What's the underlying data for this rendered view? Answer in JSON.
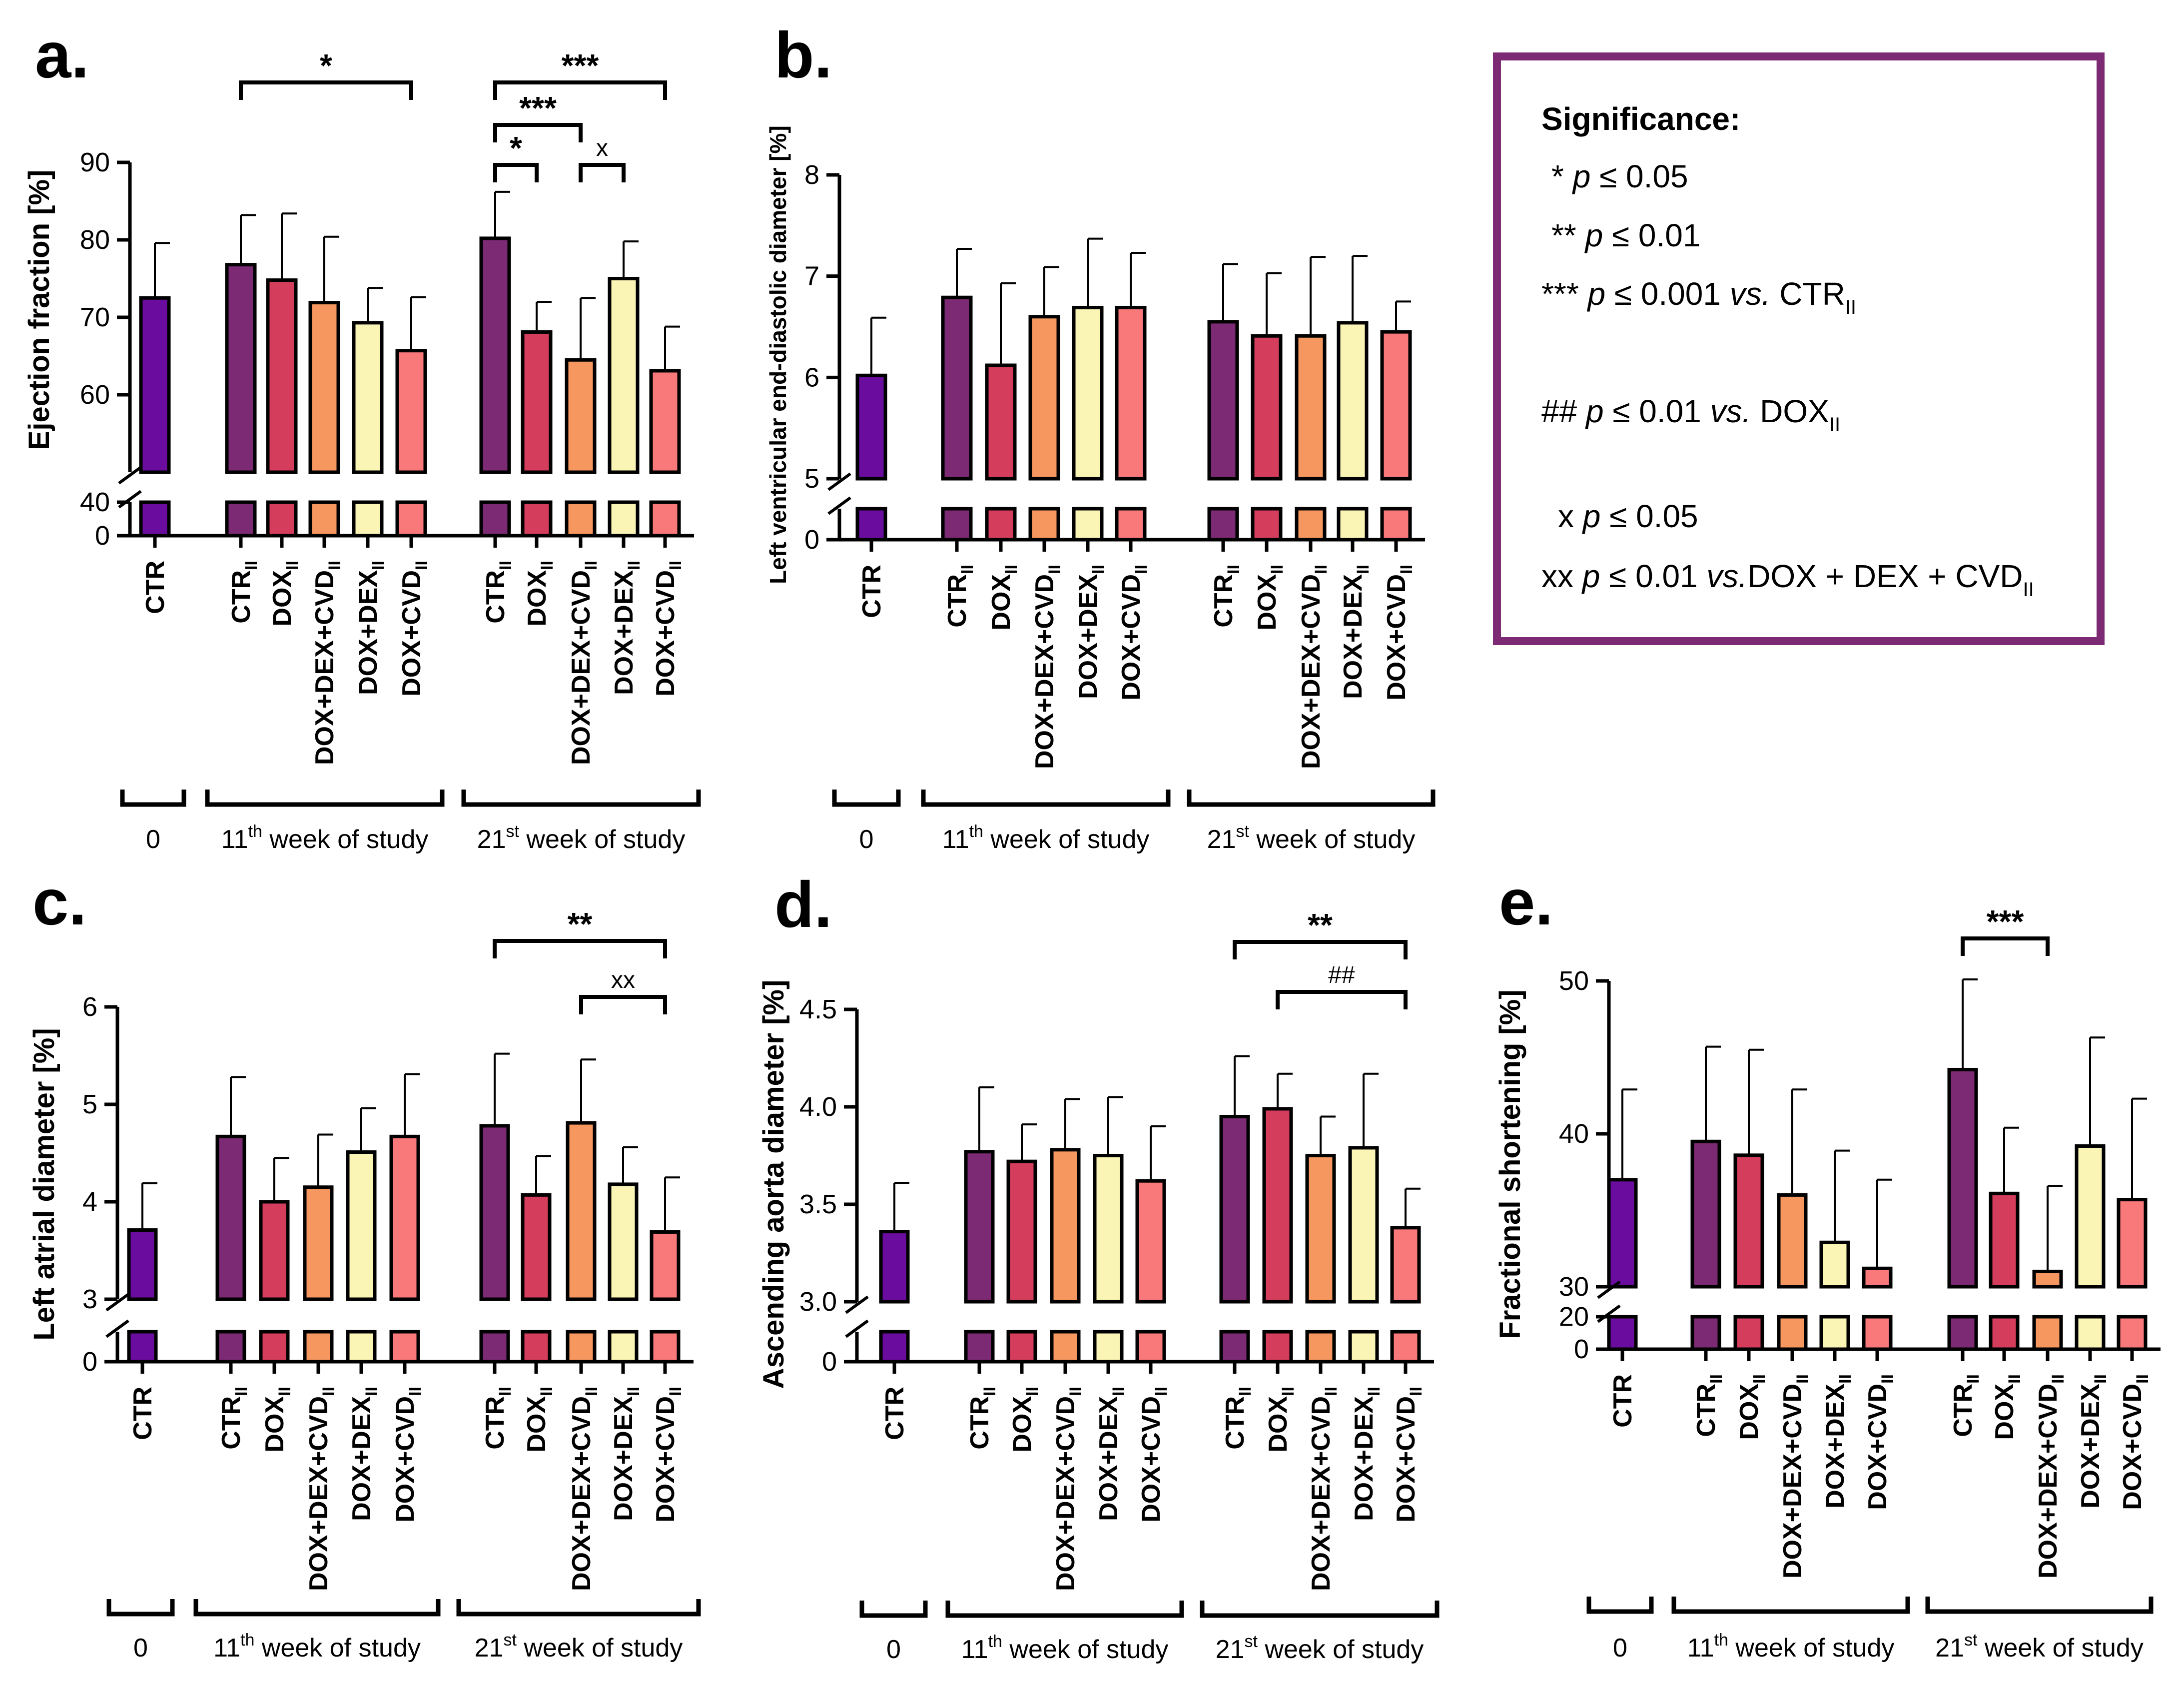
{
  "colors": {
    "CTR0": "#6a0c9e",
    "CTR": "#7b2a73",
    "DOX": "#d43d5c",
    "DOX+DEX+CVD": "#f6975f",
    "DOX+DEX": "#fbf5b5",
    "DOX+CVD": "#f9787a",
    "legend_border": "#7b2a73"
  },
  "legend": {
    "title": "Significance:",
    "lines": [
      {
        "prefix": "* ",
        "p": "p",
        "rest": " ≤ 0.05",
        "vs": "",
        "ref": "",
        "sub": ""
      },
      {
        "prefix": "** ",
        "p": "p",
        "rest": " ≤ 0.01",
        "vs": "",
        "ref": "",
        "sub": ""
      },
      {
        "prefix": "*** ",
        "p": "p",
        "rest": " ≤ 0.001 ",
        "vs": "vs.",
        "ref": " CTR",
        "sub": "II"
      },
      {
        "prefix": "## ",
        "p": "p",
        "rest": " ≤ 0.01 ",
        "vs": "vs.",
        "ref": " DOX",
        "sub": "II"
      },
      {
        "prefix": "x ",
        "p": "p",
        "rest": " ≤ 0.05",
        "vs": "",
        "ref": "",
        "sub": ""
      },
      {
        "prefix": "xx ",
        "p": "p",
        "rest": " ≤ 0.01 ",
        "vs": "vs.",
        "ref": "DOX + DEX + CVD",
        "sub": "II"
      }
    ]
  },
  "chart_data": [
    {
      "panel": "a.",
      "type": "bar",
      "ylabel": "Ejection fraction [%]",
      "ylim_upper": [
        50,
        90
      ],
      "yticks_upper": [
        60,
        70,
        80,
        90
      ],
      "ylim_lower": [
        0,
        40
      ],
      "yticks_lower": [
        0,
        40
      ],
      "categories": [
        "CTR",
        "CTR",
        "DOX",
        "DOX+DEX+CVD",
        "DOX+DEX",
        "DOX+CVD",
        "CTR",
        "DOX",
        "DOX+DEX+CVD",
        "DOX+DEX",
        "DOX+CVD"
      ],
      "subscripts": [
        "",
        "II",
        "II",
        "II",
        "II",
        "II",
        "II",
        "II",
        "II",
        "II",
        "II"
      ],
      "values": [
        72.5,
        76.8,
        74.8,
        71.9,
        69.3,
        65.7,
        80.2,
        68.1,
        64.5,
        75.0,
        63.1
      ],
      "errors": [
        7.1,
        6.4,
        8.6,
        8.5,
        4.5,
        6.9,
        6.0,
        3.9,
        8.0,
        4.8,
        5.7
      ],
      "groups": [
        "0",
        "11th week of study",
        "21st week of study"
      ],
      "annotations": [
        {
          "from": 1,
          "to": 5,
          "label": "*"
        },
        {
          "from": 6,
          "to": 10,
          "label": "***"
        },
        {
          "from": 6,
          "to": 8,
          "label": "***"
        },
        {
          "from": 6,
          "to": 7,
          "label": "*"
        },
        {
          "from": 8,
          "to": 9,
          "label": "x"
        }
      ]
    },
    {
      "panel": "b.",
      "type": "bar",
      "ylabel": "Left ventricular end-diastolic diameter [%]",
      "ylim_upper": [
        5,
        8
      ],
      "yticks_upper": [
        5,
        6,
        7,
        8
      ],
      "ylim_lower": [
        0,
        5
      ],
      "yticks_lower": [
        0
      ],
      "categories": [
        "CTR",
        "CTR",
        "DOX",
        "DOX+DEX+CVD",
        "DOX+DEX",
        "DOX+CVD",
        "CTR",
        "DOX",
        "DOX+DEX+CVD",
        "DOX+DEX",
        "DOX+CVD"
      ],
      "subscripts": [
        "",
        "II",
        "II",
        "II",
        "II",
        "II",
        "II",
        "II",
        "II",
        "II",
        "II"
      ],
      "values": [
        6.02,
        6.79,
        6.12,
        6.6,
        6.69,
        6.69,
        6.55,
        6.41,
        6.41,
        6.54,
        6.45
      ],
      "errors": [
        0.57,
        0.48,
        0.81,
        0.49,
        0.68,
        0.54,
        0.57,
        0.62,
        0.78,
        0.66,
        0.3
      ],
      "groups": [
        "0",
        "11th week of study",
        "21st week of study"
      ],
      "annotations": []
    },
    {
      "panel": "c.",
      "type": "bar",
      "ylabel": "Left atrial diameter [%]",
      "ylim_upper": [
        3,
        6
      ],
      "yticks_upper": [
        3,
        4,
        5,
        6
      ],
      "ylim_lower": [
        0,
        3
      ],
      "yticks_lower": [
        0
      ],
      "categories": [
        "CTR",
        "CTR",
        "DOX",
        "DOX+DEX+CVD",
        "DOX+DEX",
        "DOX+CVD",
        "CTR",
        "DOX",
        "DOX+DEX+CVD",
        "DOX+DEX",
        "DOX+CVD"
      ],
      "subscripts": [
        "",
        "II",
        "II",
        "II",
        "II",
        "II",
        "II",
        "II",
        "II",
        "II",
        "II"
      ],
      "values": [
        3.71,
        4.67,
        4.0,
        4.15,
        4.51,
        4.67,
        4.78,
        4.07,
        4.81,
        4.18,
        3.69
      ],
      "errors": [
        0.48,
        0.61,
        0.45,
        0.54,
        0.45,
        0.64,
        0.74,
        0.4,
        0.65,
        0.38,
        0.56
      ],
      "groups": [
        "0",
        "11th week of study",
        "21st week of study"
      ],
      "annotations": [
        {
          "from": 6,
          "to": 10,
          "label": "**"
        },
        {
          "from": 8,
          "to": 10,
          "label": "xx"
        }
      ]
    },
    {
      "panel": "d.",
      "type": "bar",
      "ylabel": "Ascending aorta diameter [%]",
      "ylim_upper": [
        3.0,
        4.5
      ],
      "yticks_upper": [
        3.0,
        3.5,
        4.0,
        4.5
      ],
      "ylim_lower": [
        0,
        3.0
      ],
      "yticks_lower": [
        0
      ],
      "categories": [
        "CTR",
        "CTR",
        "DOX",
        "DOX+DEX+CVD",
        "DOX+DEX",
        "DOX+CVD",
        "CTR",
        "DOX",
        "DOX+DEX+CVD",
        "DOX+DEX",
        "DOX+CVD"
      ],
      "subscripts": [
        "",
        "II",
        "II",
        "II",
        "II",
        "II",
        "II",
        "II",
        "II",
        "II",
        "II"
      ],
      "values": [
        3.36,
        3.77,
        3.72,
        3.78,
        3.75,
        3.62,
        3.95,
        3.99,
        3.75,
        3.79,
        3.38
      ],
      "errors": [
        0.25,
        0.33,
        0.19,
        0.26,
        0.3,
        0.28,
        0.31,
        0.18,
        0.2,
        0.38,
        0.2
      ],
      "groups": [
        "0",
        "11th week of study",
        "21st week of study"
      ],
      "annotations": [
        {
          "from": 6,
          "to": 10,
          "label": "**"
        },
        {
          "from": 7,
          "to": 10,
          "label": "##"
        }
      ]
    },
    {
      "panel": "e.",
      "type": "bar",
      "ylabel": "Fractional shortening [%]",
      "ylim_upper": [
        30,
        50
      ],
      "yticks_upper": [
        30,
        40,
        50
      ],
      "ylim_lower": [
        0,
        20
      ],
      "yticks_lower": [
        0,
        20
      ],
      "categories": [
        "CTR",
        "CTR",
        "DOX",
        "DOX+DEX+CVD",
        "DOX+DEX",
        "DOX+CVD",
        "CTR",
        "DOX",
        "DOX+DEX+CVD",
        "DOX+DEX",
        "DOX+CVD"
      ],
      "subscripts": [
        "",
        "II",
        "II",
        "II",
        "II",
        "II",
        "II",
        "II",
        "II",
        "II",
        "II"
      ],
      "values": [
        37.0,
        39.5,
        38.6,
        36.0,
        32.9,
        31.2,
        44.2,
        36.1,
        31.0,
        39.2,
        35.7
      ],
      "errors": [
        5.9,
        6.2,
        6.9,
        6.9,
        6.0,
        5.8,
        5.9,
        4.3,
        5.6,
        7.1,
        6.6
      ],
      "groups": [
        "0",
        "11th week of study",
        "21st week of study"
      ],
      "annotations": [
        {
          "from": 6,
          "to": 8,
          "label": "***"
        }
      ]
    }
  ]
}
